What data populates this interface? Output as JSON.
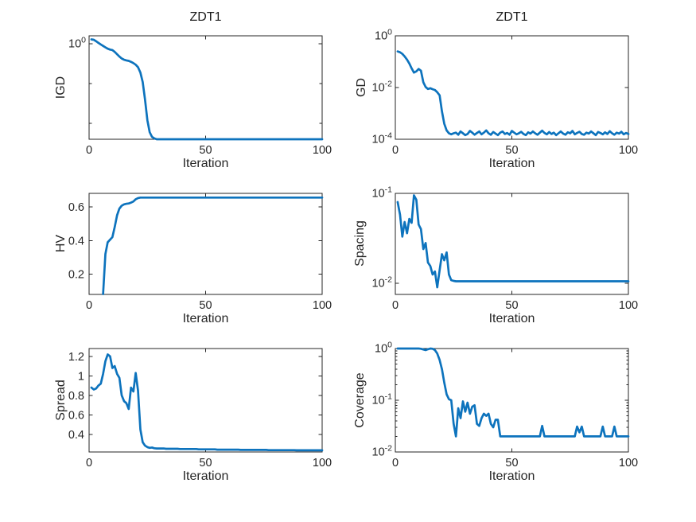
{
  "figure": {
    "background": "#ffffff",
    "line_color": "#0d73bd",
    "axis_color": "#262626",
    "text_color": "#262626"
  },
  "chart_data": [
    {
      "id": "igd",
      "type": "line",
      "title": "ZDT1",
      "xlabel": "Iteration",
      "ylabel": "IGD",
      "yscale": "log",
      "ymin": 0.004,
      "ymax": 1.6,
      "xmin": 0,
      "xmax": 100,
      "x0": 1,
      "xticks": [
        {
          "v": 0,
          "label": "0"
        },
        {
          "v": 50,
          "label": "50"
        },
        {
          "v": 100,
          "label": "100"
        }
      ],
      "yticks": [
        {
          "v": 1,
          "exp": "0"
        },
        {
          "v": 0.1
        },
        {
          "v": 0.01
        }
      ],
      "values": [
        1.3,
        1.27,
        1.17,
        1.06,
        0.97,
        0.89,
        0.82,
        0.76,
        0.72,
        0.7,
        0.63,
        0.55,
        0.48,
        0.43,
        0.4,
        0.385,
        0.375,
        0.355,
        0.33,
        0.3,
        0.26,
        0.19,
        0.11,
        0.04,
        0.012,
        0.006,
        0.0046,
        0.0042,
        {
          "r": 72,
          "v": 0.004
        }
      ]
    },
    {
      "id": "gd",
      "type": "line",
      "title": "ZDT1",
      "xlabel": "Iteration",
      "ylabel": "GD",
      "yscale": "log",
      "ymin": 0.0001,
      "ymax": 1,
      "xmin": 0,
      "xmax": 100,
      "x0": 1,
      "xticks": [
        {
          "v": 0,
          "label": "0"
        },
        {
          "v": 50,
          "label": "50"
        },
        {
          "v": 100,
          "label": "100"
        }
      ],
      "yticks": [
        {
          "v": 1,
          "exp": "0"
        },
        {
          "v": 0.01,
          "exp": "-2"
        },
        {
          "v": 0.0001,
          "exp": "-4"
        }
      ],
      "values": [
        0.25,
        0.23,
        0.2,
        0.16,
        0.12,
        0.085,
        0.055,
        0.038,
        0.042,
        0.052,
        0.045,
        0.016,
        0.0105,
        0.0088,
        0.0094,
        0.0086,
        0.008,
        0.0066,
        0.005,
        0.0012,
        0.0004,
        0.00022,
        0.00017,
        0.000155,
        0.00017,
        0.00018,
        0.00015,
        0.0002,
        0.00017,
        0.000145,
        0.00016,
        0.00021,
        0.00018,
        0.00015,
        0.000175,
        0.0002,
        0.000155,
        0.00018,
        0.00022,
        0.00017,
        0.00015,
        0.00019,
        0.000165,
        0.000145,
        0.00018,
        0.0002,
        0.00016,
        0.000175,
        0.00015,
        0.00021,
        0.00018,
        0.000155,
        0.00017,
        0.000195,
        0.00016,
        0.000145,
        0.000185,
        0.000165,
        0.0002,
        0.00017,
        0.00015,
        0.00018,
        0.000215,
        0.000175,
        0.000155,
        0.00019,
        0.00016,
        0.00018,
        0.000145,
        0.00017,
        0.0002,
        0.000165,
        0.00015,
        0.000185,
        0.00017,
        0.00021,
        0.000155,
        0.000175,
        0.000195,
        0.00016,
        0.00015,
        0.00018,
        0.000165,
        0.0002,
        0.00017,
        0.000145,
        0.00019,
        0.000175,
        0.000155,
        0.000185,
        0.00016,
        0.000205,
        0.00017,
        0.00015,
        0.00018,
        0.000165,
        0.000195,
        0.000155,
        0.000175,
        0.00016
      ]
    },
    {
      "id": "hv",
      "type": "line",
      "title": "",
      "xlabel": "Iteration",
      "ylabel": "HV",
      "yscale": "linear",
      "ymin": 0.08,
      "ymax": 0.68,
      "xmin": 0,
      "xmax": 100,
      "x0": 6,
      "xticks": [
        {
          "v": 0,
          "label": "0"
        },
        {
          "v": 50,
          "label": "50"
        },
        {
          "v": 100,
          "label": "100"
        }
      ],
      "yticks": [
        {
          "v": 0.6,
          "label": "0.6"
        },
        {
          "v": 0.4,
          "label": "0.4"
        },
        {
          "v": 0.2,
          "label": "0.2"
        }
      ],
      "values": [
        0.082,
        0.32,
        0.39,
        0.405,
        0.42,
        0.48,
        0.55,
        0.59,
        0.607,
        0.615,
        0.618,
        0.62,
        0.625,
        0.632,
        0.645,
        0.652,
        0.655,
        {
          "r": 78,
          "v": 0.655
        }
      ]
    },
    {
      "id": "spacing",
      "type": "line",
      "title": "",
      "xlabel": "Iteration",
      "ylabel": "Spacing",
      "yscale": "log",
      "ymin": 0.0075,
      "ymax": 0.1,
      "xmin": 0,
      "xmax": 100,
      "x0": 1,
      "xticks": [
        {
          "v": 0,
          "label": "0"
        },
        {
          "v": 50,
          "label": "50"
        },
        {
          "v": 100,
          "label": "100"
        }
      ],
      "yticks": [
        {
          "v": 0.1,
          "exp": "-1"
        },
        {
          "v": 0.01,
          "exp": "-2"
        }
      ],
      "values": [
        0.08,
        0.058,
        0.033,
        0.048,
        0.036,
        0.052,
        0.047,
        0.095,
        0.085,
        0.045,
        0.04,
        0.024,
        0.028,
        0.017,
        0.0155,
        0.0125,
        0.0135,
        0.009,
        0.014,
        0.021,
        0.018,
        0.022,
        0.0125,
        0.0108,
        0.0106,
        0.0105,
        {
          "r": 74,
          "v": 0.0105
        }
      ]
    },
    {
      "id": "spread",
      "type": "line",
      "title": "",
      "xlabel": "Iteration",
      "ylabel": "Spread",
      "yscale": "linear",
      "ymin": 0.22,
      "ymax": 1.28,
      "xmin": 0,
      "xmax": 100,
      "x0": 1,
      "xticks": [
        {
          "v": 0,
          "label": "0"
        },
        {
          "v": 50,
          "label": "50"
        },
        {
          "v": 100,
          "label": "100"
        }
      ],
      "yticks": [
        {
          "v": 1.2,
          "label": "1.2"
        },
        {
          "v": 1,
          "label": "1"
        },
        {
          "v": 0.8,
          "label": "0.8"
        },
        {
          "v": 0.6,
          "label": "0.6"
        },
        {
          "v": 0.4,
          "label": "0.4"
        }
      ],
      "values": [
        0.88,
        0.86,
        0.87,
        0.9,
        0.92,
        1.02,
        1.15,
        1.22,
        1.2,
        1.08,
        1.1,
        1.02,
        0.98,
        0.8,
        0.74,
        0.72,
        0.66,
        0.88,
        0.84,
        1.03,
        0.85,
        0.45,
        0.32,
        0.285,
        0.27,
        0.262,
        0.266,
        0.258,
        {
          "r": 4,
          "v": 0.256
        },
        {
          "r": 6,
          "v": 0.253
        },
        {
          "r": 8,
          "v": 0.25
        },
        {
          "r": 8,
          "v": 0.247
        },
        {
          "r": 10,
          "v": 0.244
        },
        {
          "r": 12,
          "v": 0.241
        },
        {
          "r": 12,
          "v": 0.239
        },
        {
          "r": 12,
          "v": 0.237
        }
      ]
    },
    {
      "id": "coverage",
      "type": "line",
      "title": "",
      "xlabel": "Iteration",
      "ylabel": "Coverage",
      "yscale": "log",
      "ymin": 0.01,
      "ymax": 1,
      "xmin": 0,
      "xmax": 100,
      "x0": 1,
      "minor_ticks": true,
      "xticks": [
        {
          "v": 0,
          "label": "0"
        },
        {
          "v": 50,
          "label": "50"
        },
        {
          "v": 100,
          "label": "100"
        }
      ],
      "yticks": [
        {
          "v": 1,
          "exp": "0"
        },
        {
          "v": 0.1,
          "exp": "-1"
        },
        {
          "v": 0.01,
          "exp": "-2"
        }
      ],
      "values": [
        {
          "r": 10,
          "v": 1.0
        },
        0.99,
        0.96,
        0.93,
        0.97,
        1.0,
        0.99,
        0.93,
        0.8,
        0.6,
        0.4,
        0.22,
        0.13,
        0.105,
        0.1,
        0.035,
        0.02,
        0.07,
        0.045,
        0.095,
        0.06,
        0.09,
        0.055,
        0.075,
        0.08,
        0.035,
        0.032,
        0.045,
        0.055,
        0.05,
        0.055,
        0.035,
        0.03,
        0.042,
        0.042,
        0.02,
        {
          "r": 17,
          "v": 0.02
        },
        0.032,
        {
          "r": 14,
          "v": 0.02
        },
        0.031,
        0.024,
        0.031,
        {
          "r": 8,
          "v": 0.02
        },
        0.031,
        {
          "r": 4,
          "v": 0.02
        },
        0.031,
        {
          "r": 6,
          "v": 0.02
        }
      ]
    }
  ]
}
